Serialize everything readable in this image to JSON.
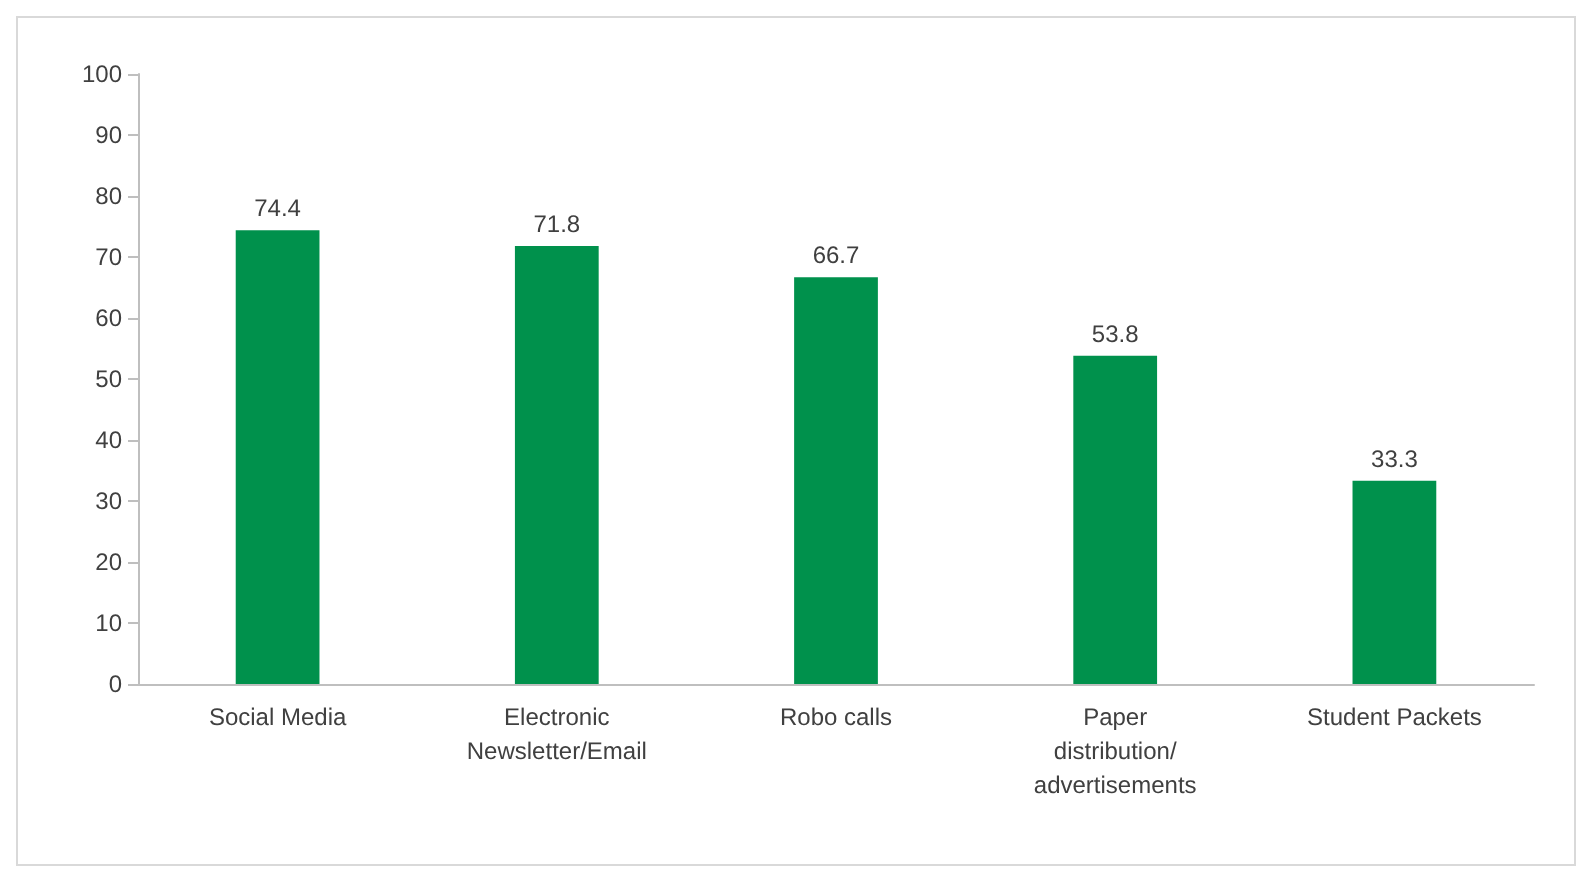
{
  "chart_data": {
    "type": "bar",
    "categories": [
      "Social Media",
      "Electronic\nNewsletter/Email",
      "Robo calls",
      "Paper\ndistribution/\nadvertisements",
      "Student Packets"
    ],
    "values": [
      74.4,
      71.8,
      66.7,
      53.8,
      33.3
    ],
    "color": "#00914c",
    "ylim": [
      0,
      100
    ],
    "yticks": [
      0,
      10,
      20,
      30,
      40,
      50,
      60,
      70,
      80,
      90,
      100
    ],
    "grid": false,
    "data_labels": true
  }
}
